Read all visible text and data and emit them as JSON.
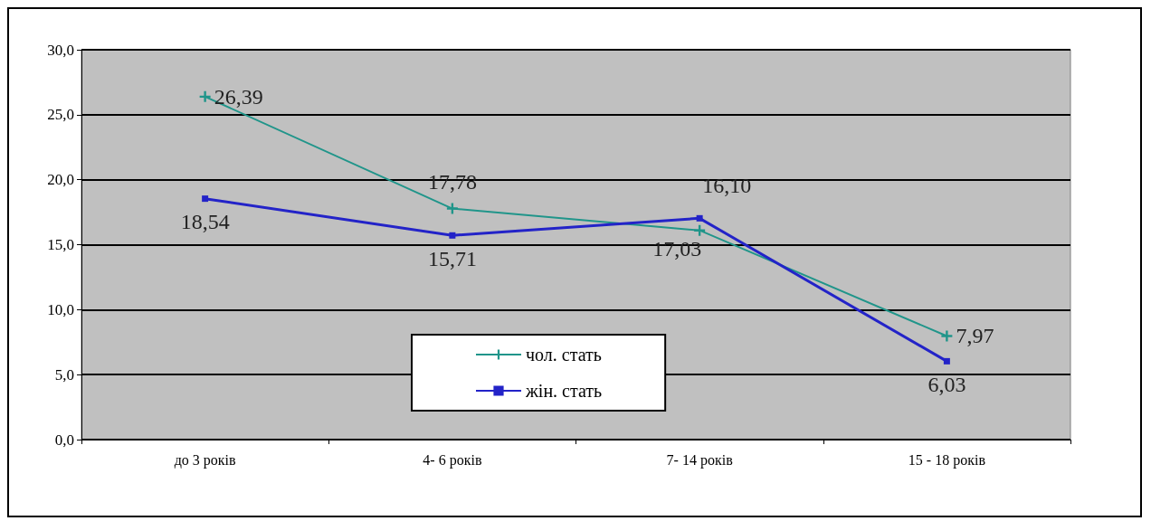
{
  "chart_data": {
    "type": "line",
    "categories": [
      "до 3 років",
      "4- 6 років",
      "7- 14 років",
      "15 - 18 років"
    ],
    "series": [
      {
        "name": "чол. стать",
        "color": "#20958a",
        "marker": "cross",
        "values": [
          26.39,
          17.78,
          16.1,
          7.97
        ],
        "value_labels": [
          "26,39",
          "17,78",
          "16,10",
          "7,97"
        ]
      },
      {
        "name": "жін. стать",
        "color": "#2323c8",
        "marker": "square",
        "values": [
          18.54,
          15.71,
          17.03,
          6.03
        ],
        "value_labels": [
          "18,54",
          "15,71",
          "17,03",
          "6,03"
        ]
      }
    ],
    "ylim": [
      0,
      30
    ],
    "yticks": [
      {
        "value": 0,
        "label": "0,0"
      },
      {
        "value": 5,
        "label": "5,0"
      },
      {
        "value": 10,
        "label": "10,0"
      },
      {
        "value": 15,
        "label": "15,0"
      },
      {
        "value": 20,
        "label": "20,0"
      },
      {
        "value": 25,
        "label": "25,0"
      },
      {
        "value": 30,
        "label": "30,0"
      }
    ],
    "grid": "y",
    "legend": "bottom",
    "line_style": "solid"
  }
}
